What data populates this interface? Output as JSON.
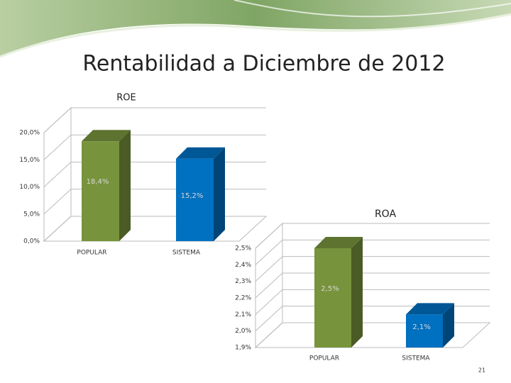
{
  "slide": {
    "title": "Rentabilidad a Diciembre de 2012",
    "page_number": "21"
  },
  "chart_data": [
    {
      "type": "bar",
      "title": "ROE",
      "categories": [
        "POPULAR",
        "SISTEMA"
      ],
      "series": [
        {
          "name": "ROE",
          "colors": [
            "#77933c",
            "#0070c0"
          ],
          "values": [
            18.4,
            15.2
          ],
          "value_labels": [
            "18,4%",
            "15,2%"
          ]
        }
      ],
      "ylim": [
        0,
        20
      ],
      "yticks": [
        {
          "value": 0,
          "label": "0,0%"
        },
        {
          "value": 5,
          "label": "5,0%"
        },
        {
          "value": 10,
          "label": "10,0%"
        },
        {
          "value": 15,
          "label": "15,0%"
        },
        {
          "value": 20,
          "label": "20,0%"
        }
      ],
      "grid": true
    },
    {
      "type": "bar",
      "title": "ROA",
      "categories": [
        "POPULAR",
        "SISTEMA"
      ],
      "series": [
        {
          "name": "ROA",
          "colors": [
            "#77933c",
            "#0070c0"
          ],
          "values": [
            2.5,
            2.1
          ],
          "value_labels": [
            "2,5%",
            "2,1%"
          ]
        }
      ],
      "ylim": [
        1.9,
        2.5
      ],
      "yticks": [
        {
          "value": 1.9,
          "label": "1,9%"
        },
        {
          "value": 2.0,
          "label": "2,0%"
        },
        {
          "value": 2.1,
          "label": "2,1%"
        },
        {
          "value": 2.2,
          "label": "2,2%"
        },
        {
          "value": 2.3,
          "label": "2,3%"
        },
        {
          "value": 2.4,
          "label": "2,4%"
        },
        {
          "value": 2.5,
          "label": "2,5%"
        }
      ],
      "grid": true
    }
  ]
}
